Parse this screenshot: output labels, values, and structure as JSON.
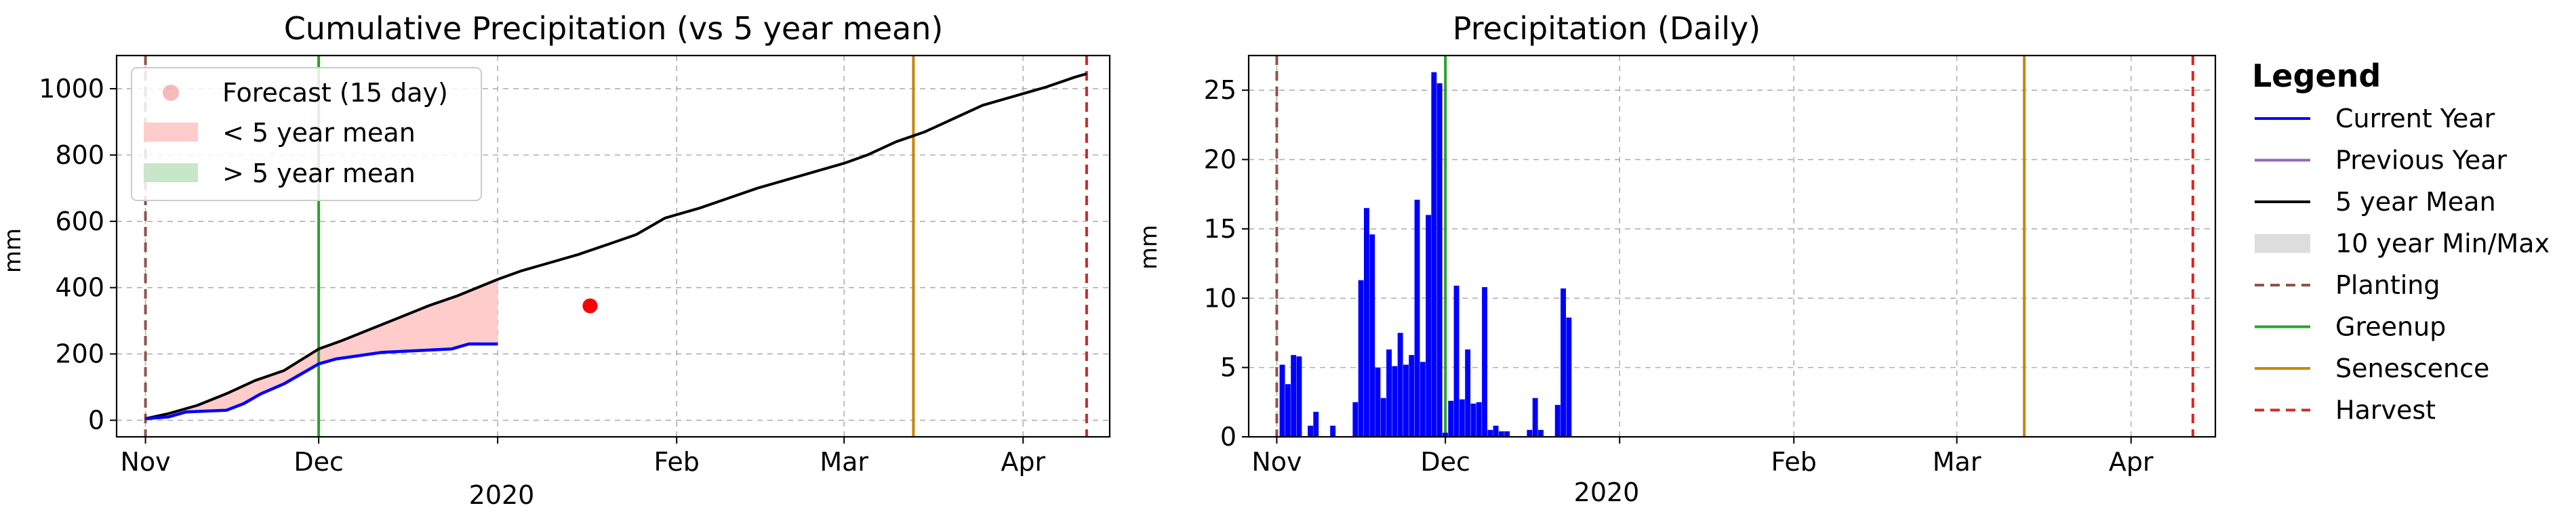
{
  "chart_data": [
    {
      "type": "line",
      "title": "Cumulative Precipitation (vs 5 year mean)",
      "xlabel": "2020",
      "ylabel": "mm",
      "ylim": [
        -50,
        1100
      ],
      "yticks": [
        0,
        200,
        400,
        600,
        800,
        1000
      ],
      "xlim": [
        "2019-10-27",
        "2020-04-16"
      ],
      "xticks": [
        {
          "date": "2019-11-01",
          "label": "Nov"
        },
        {
          "date": "2019-12-01",
          "label": "Dec"
        },
        {
          "date": "2020-01-01",
          "label": ""
        },
        {
          "date": "2020-02-01",
          "label": "Feb"
        },
        {
          "date": "2020-03-01",
          "label": "Mar"
        },
        {
          "date": "2020-04-01",
          "label": "Apr"
        }
      ],
      "grid": true,
      "legend_position": "upper-left",
      "legend": [
        {
          "label": "Forecast (15 day)",
          "kind": "marker",
          "color": "#f08080"
        },
        {
          "label": "< 5 year mean",
          "kind": "patch",
          "color": "#ffcccc"
        },
        {
          "label": "> 5 year mean",
          "kind": "patch",
          "color": "#c8e6c8"
        }
      ],
      "series": [
        {
          "name": "5 year Mean",
          "color": "#000000",
          "points": [
            [
              "2019-11-01",
              5
            ],
            [
              "2019-11-05",
              20
            ],
            [
              "2019-11-10",
              45
            ],
            [
              "2019-11-15",
              80
            ],
            [
              "2019-11-20",
              120
            ],
            [
              "2019-11-25",
              150
            ],
            [
              "2019-12-01",
              215
            ],
            [
              "2019-12-05",
              240
            ],
            [
              "2019-12-10",
              275
            ],
            [
              "2019-12-15",
              310
            ],
            [
              "2019-12-20",
              345
            ],
            [
              "2019-12-25",
              375
            ],
            [
              "2020-01-01",
              425
            ],
            [
              "2020-01-05",
              450
            ],
            [
              "2020-01-10",
              475
            ],
            [
              "2020-01-15",
              500
            ],
            [
              "2020-01-20",
              530
            ],
            [
              "2020-01-25",
              560
            ],
            [
              "2020-01-30",
              610
            ],
            [
              "2020-02-05",
              640
            ],
            [
              "2020-02-10",
              670
            ],
            [
              "2020-02-15",
              700
            ],
            [
              "2020-02-20",
              725
            ],
            [
              "2020-02-25",
              750
            ],
            [
              "2020-03-01",
              775
            ],
            [
              "2020-03-05",
              800
            ],
            [
              "2020-03-10",
              840
            ],
            [
              "2020-03-15",
              870
            ],
            [
              "2020-03-20",
              910
            ],
            [
              "2020-03-25",
              950
            ],
            [
              "2020-03-30",
              975
            ],
            [
              "2020-04-05",
              1005
            ],
            [
              "2020-04-10",
              1035
            ],
            [
              "2020-04-12",
              1045
            ]
          ]
        },
        {
          "name": "Current Year",
          "color": "#0000ff",
          "points": [
            [
              "2019-11-01",
              5
            ],
            [
              "2019-11-05",
              10
            ],
            [
              "2019-11-08",
              25
            ],
            [
              "2019-11-15",
              30
            ],
            [
              "2019-11-18",
              50
            ],
            [
              "2019-11-21",
              80
            ],
            [
              "2019-11-25",
              110
            ],
            [
              "2019-11-28",
              140
            ],
            [
              "2019-12-01",
              170
            ],
            [
              "2019-12-04",
              185
            ],
            [
              "2019-12-08",
              195
            ],
            [
              "2019-12-12",
              205
            ],
            [
              "2019-12-18",
              210
            ],
            [
              "2019-12-24",
              215
            ],
            [
              "2019-12-27",
              230
            ],
            [
              "2020-01-01",
              230
            ]
          ]
        }
      ],
      "forecast_point": {
        "x": "2020-01-17",
        "y": 345,
        "color": "#ff0000"
      },
      "vertical_lines": [
        {
          "x": "2019-11-01",
          "color": "#8c564b",
          "style": "dashed"
        },
        {
          "x": "2019-12-01",
          "color": "#2ca02c",
          "style": "solid"
        },
        {
          "x": "2020-03-13",
          "color": "#c8860a",
          "style": "solid"
        },
        {
          "x": "2020-04-12",
          "color": "#d62728",
          "style": "dashed"
        }
      ]
    },
    {
      "type": "bar",
      "title": "Precipitation (Daily)",
      "xlabel": "2020",
      "ylabel": "mm",
      "ylim": [
        0,
        27.5
      ],
      "yticks": [
        0,
        5,
        10,
        15,
        20,
        25
      ],
      "xlim": [
        "2019-10-27",
        "2020-04-16"
      ],
      "xticks": [
        {
          "date": "2019-11-01",
          "label": "Nov"
        },
        {
          "date": "2019-12-01",
          "label": "Dec"
        },
        {
          "date": "2020-01-01",
          "label": ""
        },
        {
          "date": "2020-02-01",
          "label": "Feb"
        },
        {
          "date": "2020-03-01",
          "label": "Mar"
        },
        {
          "date": "2020-04-01",
          "label": "Apr"
        }
      ],
      "grid": true,
      "bar_color": "#0000ff",
      "bars": [
        [
          "2019-11-02",
          5.2
        ],
        [
          "2019-11-03",
          3.8
        ],
        [
          "2019-11-04",
          5.9
        ],
        [
          "2019-11-05",
          5.8
        ],
        [
          "2019-11-07",
          0.8
        ],
        [
          "2019-11-08",
          1.8
        ],
        [
          "2019-11-11",
          0.8
        ],
        [
          "2019-11-15",
          2.5
        ],
        [
          "2019-11-16",
          11.3
        ],
        [
          "2019-11-17",
          16.5
        ],
        [
          "2019-11-18",
          14.6
        ],
        [
          "2019-11-19",
          5.0
        ],
        [
          "2019-11-20",
          2.8
        ],
        [
          "2019-11-21",
          6.3
        ],
        [
          "2019-11-22",
          5.1
        ],
        [
          "2019-11-23",
          7.5
        ],
        [
          "2019-11-24",
          5.2
        ],
        [
          "2019-11-25",
          5.9
        ],
        [
          "2019-11-26",
          17.1
        ],
        [
          "2019-11-27",
          5.4
        ],
        [
          "2019-11-28",
          16.0
        ],
        [
          "2019-11-29",
          26.3
        ],
        [
          "2019-11-30",
          25.5
        ],
        [
          "2019-12-01",
          0.3
        ],
        [
          "2019-12-02",
          2.6
        ],
        [
          "2019-12-03",
          10.9
        ],
        [
          "2019-12-04",
          2.7
        ],
        [
          "2019-12-05",
          6.3
        ],
        [
          "2019-12-06",
          2.4
        ],
        [
          "2019-12-07",
          2.5
        ],
        [
          "2019-12-08",
          10.8
        ],
        [
          "2019-12-09",
          0.5
        ],
        [
          "2019-12-10",
          0.8
        ],
        [
          "2019-12-11",
          0.4
        ],
        [
          "2019-12-12",
          0.4
        ],
        [
          "2019-12-16",
          0.5
        ],
        [
          "2019-12-17",
          2.8
        ],
        [
          "2019-12-18",
          0.5
        ],
        [
          "2019-12-21",
          2.3
        ],
        [
          "2019-12-22",
          10.7
        ],
        [
          "2019-12-23",
          8.6
        ]
      ],
      "vertical_lines": [
        {
          "x": "2019-11-01",
          "color": "#8c564b",
          "style": "dashed"
        },
        {
          "x": "2019-12-01",
          "color": "#2ca02c",
          "style": "solid"
        },
        {
          "x": "2020-03-13",
          "color": "#c8860a",
          "style": "solid"
        },
        {
          "x": "2020-04-12",
          "color": "#d62728",
          "style": "dashed"
        }
      ]
    }
  ],
  "legend": {
    "title": "Legend",
    "items": [
      {
        "label": "Current Year",
        "color": "#0000ff",
        "kind": "line"
      },
      {
        "label": "Previous Year",
        "color": "#9467bd",
        "kind": "line"
      },
      {
        "label": "5 year Mean",
        "color": "#000000",
        "kind": "line"
      },
      {
        "label": "10 year Min/Max",
        "color": "#dddddd",
        "kind": "patch"
      },
      {
        "label": "Planting",
        "color": "#8c564b",
        "kind": "dashed"
      },
      {
        "label": "Greenup",
        "color": "#2ca02c",
        "kind": "line"
      },
      {
        "label": "Senescence",
        "color": "#c8860a",
        "kind": "line"
      },
      {
        "label": "Harvest",
        "color": "#d62728",
        "kind": "dashed"
      }
    ]
  }
}
